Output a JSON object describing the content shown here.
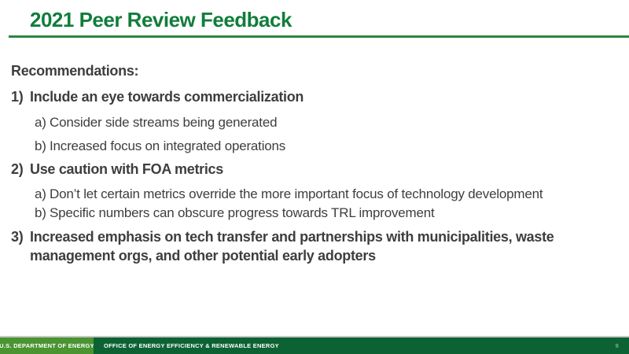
{
  "header": {
    "title": "2021 Peer Review Feedback"
  },
  "body": {
    "heading": "Recommendations:",
    "list": [
      {
        "level": 1,
        "marker": "1)",
        "text": "Include an eye towards commercialization"
      },
      {
        "level": 2,
        "marker": "a)",
        "text": "Consider side streams being generated"
      },
      {
        "level": 2,
        "marker": "b)",
        "text": "Increased focus on integrated operations"
      },
      {
        "level": 1,
        "marker": "2)",
        "text": "Use caution with FOA metrics"
      },
      {
        "level": 2,
        "marker": "a)",
        "text": "Don’t let certain metrics override the more important focus of technology development"
      },
      {
        "level": 2,
        "marker": "b)",
        "text": "Specific numbers can obscure progress towards TRL improvement"
      },
      {
        "level": 1,
        "marker": "3)",
        "text": "Increased emphasis on tech transfer and partnerships with municipalities, waste management orgs, and other potential early adopters"
      }
    ]
  },
  "footer": {
    "department": "U.S. DEPARTMENT OF ENERGY",
    "office": "OFFICE OF ENERGY EFFICIENCY & RENEWABLE ENERGY",
    "page_number": "9"
  },
  "colors": {
    "title_green": "#117d3b",
    "rule_green": "#2e8540",
    "body_text": "#3e3e3e",
    "footer_left_green": "#4a9431",
    "footer_right_green": "#0c6233",
    "footer_divider_gray": "#c6c9c5",
    "page_number_green": "#7fae89"
  }
}
